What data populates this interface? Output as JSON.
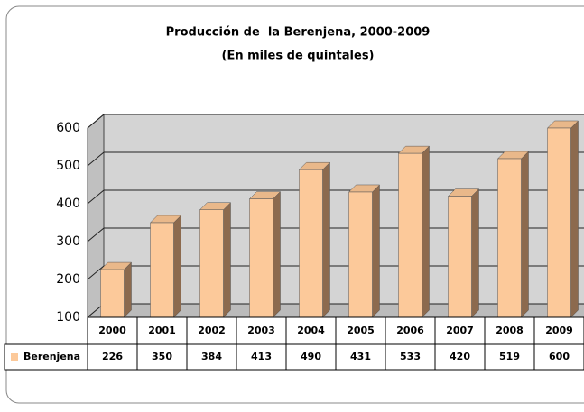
{
  "chart_data": {
    "type": "bar3d",
    "title": "Producción de  la Berenjena, 2000-2009",
    "subtitle": "(En miles de quintales)",
    "categories": [
      "2000",
      "2001",
      "2002",
      "2003",
      "2004",
      "2005",
      "2006",
      "2007",
      "2008",
      "2009"
    ],
    "series": [
      {
        "name": "Berenjena",
        "color": "#fcc99a",
        "values": [
          226,
          350,
          384,
          413,
          490,
          431,
          533,
          420,
          519,
          600
        ]
      }
    ],
    "ylim": [
      100,
      600
    ],
    "yticks": [
      100,
      200,
      300,
      400,
      500,
      600
    ],
    "grid": true,
    "data_table": true
  }
}
